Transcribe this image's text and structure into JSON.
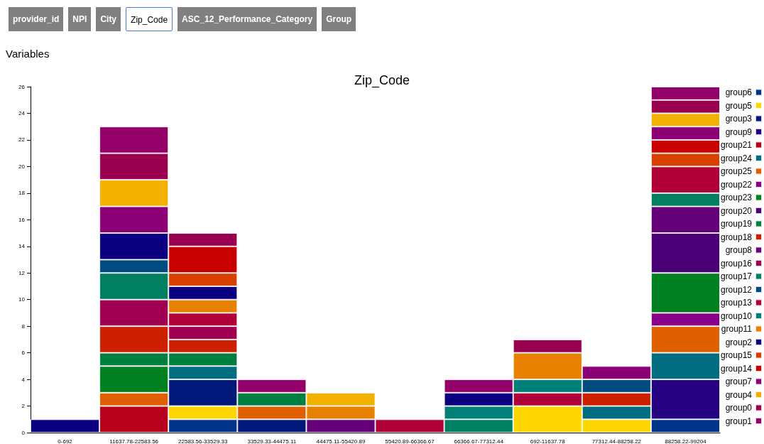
{
  "chart_data": {
    "type": "bar",
    "stacked": true,
    "title": "Zip_Code",
    "annotations": [
      "provider_id",
      "NPI",
      "City",
      "Zip_Code",
      "ASC_12_Performance_Category",
      "Group",
      "Variables"
    ],
    "categories": [
      "0-692",
      "11637.78-22583.56",
      "22583.56-33529.33",
      "33529.33-44475.11",
      "44475.11-55420.89",
      "55420.89-66366.67",
      "66366.67-77312.44",
      "692-11637.78",
      "77312.44-88258.22",
      "88258.22-99204"
    ],
    "ylim": [
      0,
      26
    ],
    "yticks": [
      0,
      2,
      4,
      6,
      8,
      10,
      12,
      14,
      16,
      18,
      20,
      22,
      24,
      26
    ],
    "grid": false,
    "legend": "right",
    "series": [
      {
        "name": "group6",
        "color": "#00338a",
        "values": [
          null,
          null,
          1,
          null,
          null,
          null,
          null,
          null,
          null,
          1
        ]
      },
      {
        "name": "group5",
        "color": "#ffd700",
        "values": [
          null,
          null,
          1,
          null,
          null,
          null,
          null,
          2,
          1,
          null
        ]
      },
      {
        "name": "group3",
        "color": "#00187a",
        "values": [
          null,
          null,
          2,
          1,
          null,
          null,
          null,
          null,
          null,
          null
        ]
      },
      {
        "name": "group9",
        "color": "#250080",
        "values": [
          null,
          null,
          null,
          null,
          null,
          null,
          null,
          null,
          null,
          3
        ]
      },
      {
        "name": "group21",
        "color": "#b8001c",
        "values": [
          null,
          2,
          null,
          null,
          null,
          null,
          null,
          null,
          null,
          null
        ]
      },
      {
        "name": "group24",
        "color": "#006e80",
        "values": [
          null,
          null,
          1,
          null,
          null,
          null,
          null,
          null,
          1,
          2
        ]
      },
      {
        "name": "group25",
        "color": "#e06000",
        "values": [
          null,
          1,
          null,
          1,
          null,
          null,
          null,
          null,
          null,
          2
        ]
      },
      {
        "name": "group22",
        "color": "#8b008b",
        "values": [
          null,
          null,
          null,
          null,
          null,
          null,
          null,
          null,
          null,
          1
        ]
      },
      {
        "name": "group23",
        "color": "#008020",
        "values": [
          null,
          2,
          null,
          null,
          null,
          null,
          null,
          null,
          null,
          3
        ]
      },
      {
        "name": "group20",
        "color": "#4b0078",
        "values": [
          null,
          null,
          null,
          null,
          null,
          null,
          null,
          null,
          null,
          3
        ]
      },
      {
        "name": "group19",
        "color": "#008040",
        "values": [
          null,
          1,
          1,
          1,
          null,
          null,
          null,
          null,
          null,
          null
        ]
      },
      {
        "name": "group18",
        "color": "#cc2000",
        "values": [
          null,
          2,
          1,
          null,
          null,
          null,
          null,
          null,
          1,
          null
        ]
      },
      {
        "name": "group8",
        "color": "#640078",
        "values": [
          null,
          null,
          null,
          null,
          1,
          null,
          null,
          null,
          null,
          2
        ]
      },
      {
        "name": "group16",
        "color": "#a00050",
        "values": [
          null,
          2,
          1,
          null,
          null,
          null,
          null,
          null,
          null,
          null
        ]
      },
      {
        "name": "group17",
        "color": "#008060",
        "values": [
          null,
          2,
          null,
          null,
          null,
          null,
          1,
          null,
          null,
          1
        ]
      },
      {
        "name": "group12",
        "color": "#004c80",
        "values": [
          null,
          1,
          null,
          null,
          null,
          null,
          null,
          null,
          1,
          null
        ]
      },
      {
        "name": "group13",
        "color": "#b00038",
        "values": [
          null,
          null,
          1,
          null,
          null,
          1,
          null,
          1,
          null,
          2
        ]
      },
      {
        "name": "group10",
        "color": "#008078",
        "values": [
          null,
          null,
          null,
          null,
          null,
          null,
          1,
          1,
          null,
          null
        ]
      },
      {
        "name": "group11",
        "color": "#e88000",
        "values": [
          null,
          null,
          1,
          null,
          1,
          null,
          null,
          2,
          null,
          null
        ]
      },
      {
        "name": "group2",
        "color": "#0a0080",
        "values": [
          1,
          2,
          1,
          null,
          null,
          null,
          1,
          null,
          null,
          null
        ]
      },
      {
        "name": "group15",
        "color": "#d84000",
        "values": [
          null,
          null,
          1,
          null,
          null,
          null,
          null,
          null,
          null,
          1
        ]
      },
      {
        "name": "group14",
        "color": "#c80000",
        "values": [
          null,
          null,
          2,
          null,
          null,
          null,
          null,
          null,
          null,
          1
        ]
      },
      {
        "name": "group7",
        "color": "#8b0075",
        "values": [
          null,
          2,
          null,
          null,
          null,
          null,
          null,
          null,
          1,
          1
        ]
      },
      {
        "name": "group4",
        "color": "#f4b000",
        "values": [
          null,
          2,
          null,
          null,
          1,
          null,
          null,
          null,
          null,
          1
        ]
      },
      {
        "name": "group0",
        "color": "#9a0050",
        "values": [
          null,
          2,
          1,
          null,
          null,
          null,
          null,
          1,
          null,
          1
        ]
      },
      {
        "name": "group1",
        "color": "#920068",
        "values": [
          null,
          2,
          null,
          1,
          null,
          null,
          1,
          null,
          null,
          1
        ]
      }
    ]
  }
}
